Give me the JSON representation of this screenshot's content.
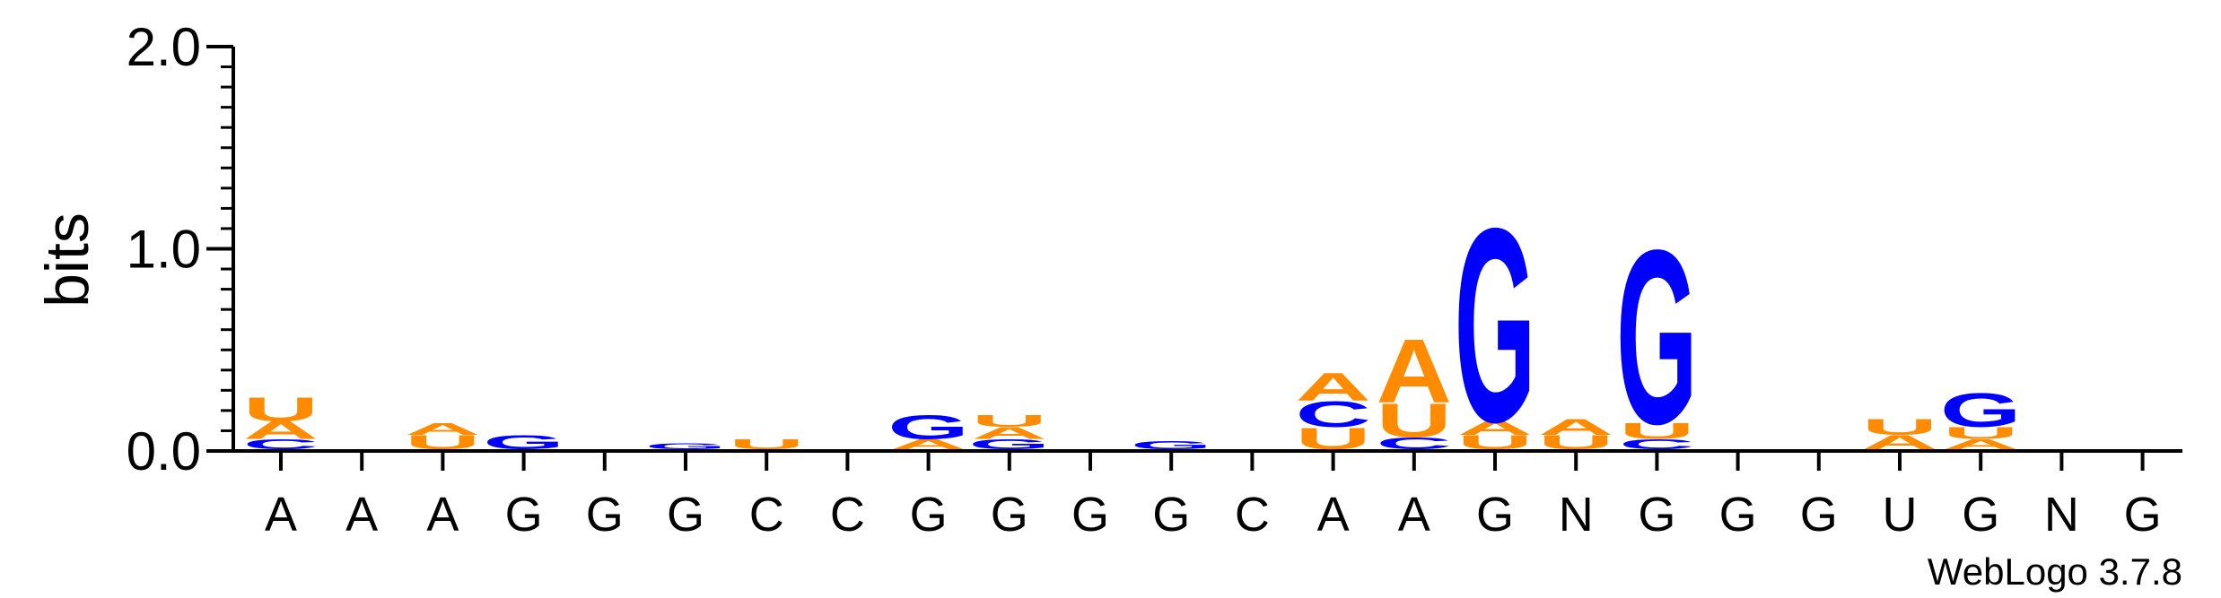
{
  "chart_data": {
    "type": "sequence-logo",
    "ylabel": "bits",
    "ylim": [
      0,
      2.0
    ],
    "yticks": [
      {
        "value": 0.0,
        "label": "0.0"
      },
      {
        "value": 1.0,
        "label": "1.0"
      },
      {
        "value": 2.0,
        "label": "2.0"
      }
    ],
    "xtick_labels": [
      "A",
      "A",
      "A",
      "G",
      "G",
      "G",
      "C",
      "C",
      "G",
      "G",
      "G",
      "G",
      "C",
      "A",
      "A",
      "G",
      "N",
      "G",
      "G",
      "G",
      "U",
      "G",
      "N",
      "G"
    ],
    "colors": {
      "A": "#ff8c00",
      "U": "#ff8c00",
      "C": "#0000ff",
      "G": "#0000ff"
    },
    "positions": [
      [
        {
          "l": "C",
          "h": 0.05
        },
        {
          "l": "A",
          "h": 0.09
        },
        {
          "l": "U",
          "h": 0.12
        }
      ],
      [],
      [
        {
          "l": "U",
          "h": 0.07
        },
        {
          "l": "A",
          "h": 0.06
        }
      ],
      [
        {
          "l": "G",
          "h": 0.07
        }
      ],
      [],
      [
        {
          "l": "G",
          "h": 0.03
        }
      ],
      [
        {
          "l": "U",
          "h": 0.05
        }
      ],
      [],
      [
        {
          "l": "A",
          "h": 0.05
        },
        {
          "l": "G",
          "h": 0.12
        }
      ],
      [
        {
          "l": "G",
          "h": 0.05
        },
        {
          "l": "A",
          "h": 0.06
        },
        {
          "l": "U",
          "h": 0.06
        }
      ],
      [],
      [
        {
          "l": "G",
          "h": 0.04
        }
      ],
      [],
      [
        {
          "l": "U",
          "h": 0.11
        },
        {
          "l": "C",
          "h": 0.13
        },
        {
          "l": "A",
          "h": 0.14
        }
      ],
      [
        {
          "l": "C",
          "h": 0.06
        },
        {
          "l": "U",
          "h": 0.17
        },
        {
          "l": "A",
          "h": 0.32
        }
      ],
      [
        {
          "l": "U",
          "h": 0.07
        },
        {
          "l": "A",
          "h": 0.07
        },
        {
          "l": "G",
          "h": 0.98
        }
      ],
      [
        {
          "l": "U",
          "h": 0.07
        },
        {
          "l": "A",
          "h": 0.08
        }
      ],
      [
        {
          "l": "C",
          "h": 0.05
        },
        {
          "l": "U",
          "h": 0.08
        },
        {
          "l": "G",
          "h": 0.88
        }
      ],
      [],
      [],
      [
        {
          "l": "A",
          "h": 0.07
        },
        {
          "l": "U",
          "h": 0.08
        }
      ],
      [
        {
          "l": "A",
          "h": 0.05
        },
        {
          "l": "U",
          "h": 0.06
        },
        {
          "l": "G",
          "h": 0.17
        }
      ],
      [],
      []
    ]
  },
  "credit": "WebLogo 3.7.8"
}
